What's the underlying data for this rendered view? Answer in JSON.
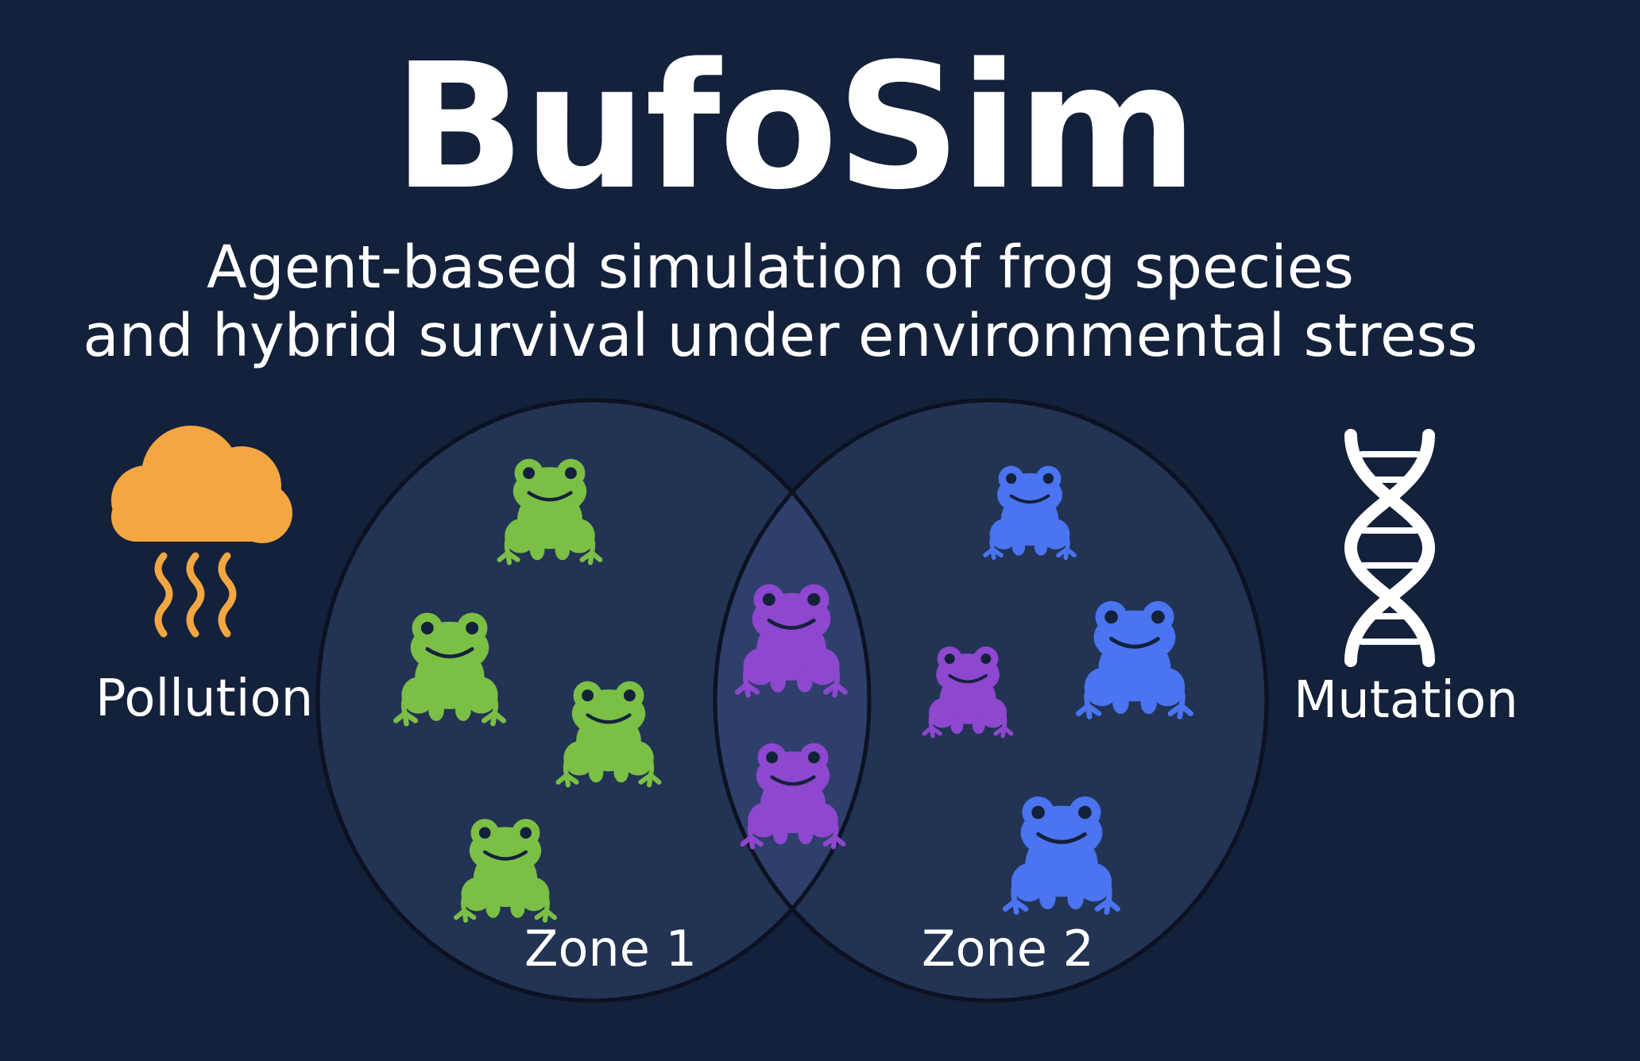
{
  "title": "BufoSim",
  "subtitle_line1": "Agent-based simulation of frog species",
  "subtitle_line2": "and hybrid survival under environmental stress",
  "left_factor": {
    "label": "Pollution",
    "icon": "cloud-pollution-icon"
  },
  "right_factor": {
    "label": "Mutation",
    "icon": "dna-icon"
  },
  "zones": [
    {
      "label": "Zone 1"
    },
    {
      "label": "Zone 2"
    }
  ],
  "colors": {
    "background": "#14213b",
    "zone_fill": "#223354",
    "overlap_fill": "#2e3f6b",
    "species_green": "#7bbf45",
    "species_blue": "#4a74f0",
    "hybrid_purple": "#8e47cf",
    "pollution_orange": "#f4a642"
  }
}
